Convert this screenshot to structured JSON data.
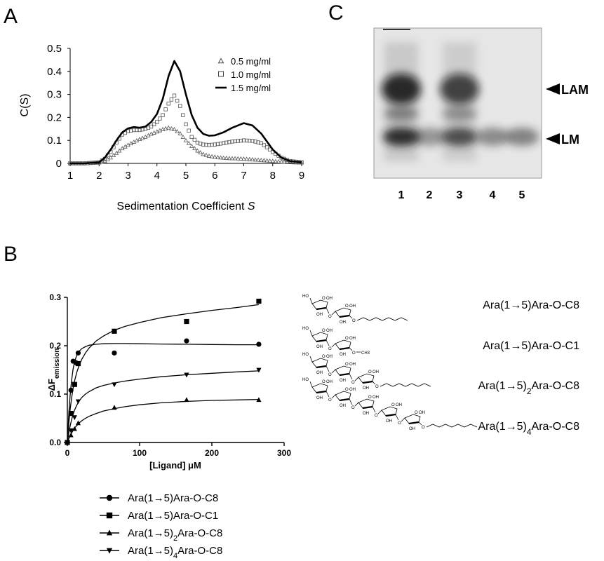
{
  "panels": {
    "a": "A",
    "b": "B",
    "c": "C"
  },
  "chart_data": [
    {
      "type": "line",
      "panel": "A",
      "xlabel": "Sedimentation Coefficient",
      "xlabel_symbol": "S",
      "ylabel": "C(S)",
      "xlim": [
        1,
        9
      ],
      "ylim": [
        0,
        0.5
      ],
      "xticks": [
        1,
        2,
        3,
        4,
        5,
        6,
        7,
        8,
        9
      ],
      "yticks": [
        0,
        0.1,
        0.2,
        0.3,
        0.4,
        0.5
      ],
      "yticklabels": [
        "0",
        "0.1",
        "0.2",
        "0.3",
        "0.4",
        "0.5"
      ],
      "grid": false,
      "legend_position": "top-right",
      "series": [
        {
          "name": "0.5 mg/ml",
          "marker": "triangle-open",
          "x": [
            1.0,
            1.5,
            2.0,
            2.2,
            2.4,
            2.6,
            2.8,
            3.0,
            3.2,
            3.4,
            3.6,
            3.8,
            4.0,
            4.2,
            4.4,
            4.6,
            4.8,
            5.0,
            5.2,
            5.4,
            5.6,
            5.8,
            6.0,
            6.2,
            6.5,
            7.0,
            7.5,
            8.0,
            8.5,
            9.0
          ],
          "y": [
            0.0,
            0.0,
            0.003,
            0.01,
            0.025,
            0.045,
            0.065,
            0.08,
            0.093,
            0.105,
            0.115,
            0.128,
            0.138,
            0.148,
            0.155,
            0.148,
            0.13,
            0.1,
            0.075,
            0.055,
            0.04,
            0.032,
            0.028,
            0.025,
            0.022,
            0.02,
            0.015,
            0.01,
            0.005,
            0.003
          ]
        },
        {
          "name": "1.0 mg/ml",
          "marker": "square-open",
          "x": [
            1.0,
            1.5,
            2.0,
            2.2,
            2.4,
            2.6,
            2.8,
            3.0,
            3.2,
            3.4,
            3.6,
            3.8,
            4.0,
            4.2,
            4.4,
            4.6,
            4.8,
            5.0,
            5.2,
            5.4,
            5.6,
            5.8,
            6.0,
            6.3,
            6.6,
            7.0,
            7.3,
            7.6,
            7.8,
            8.0,
            8.3,
            8.6,
            9.0
          ],
          "y": [
            0.0,
            0.0,
            0.005,
            0.02,
            0.05,
            0.09,
            0.125,
            0.14,
            0.145,
            0.145,
            0.15,
            0.16,
            0.18,
            0.21,
            0.26,
            0.295,
            0.25,
            0.17,
            0.115,
            0.09,
            0.082,
            0.08,
            0.082,
            0.088,
            0.095,
            0.1,
            0.098,
            0.088,
            0.07,
            0.05,
            0.025,
            0.01,
            0.005
          ]
        },
        {
          "name": "1.5 mg/ml",
          "marker": "line",
          "x": [
            1.0,
            1.5,
            2.0,
            2.2,
            2.4,
            2.6,
            2.8,
            3.0,
            3.2,
            3.4,
            3.6,
            3.8,
            4.0,
            4.2,
            4.4,
            4.6,
            4.8,
            5.0,
            5.2,
            5.4,
            5.6,
            5.8,
            6.0,
            6.3,
            6.6,
            7.0,
            7.3,
            7.6,
            7.8,
            8.0,
            8.3,
            8.6,
            9.0
          ],
          "y": [
            0.0,
            0.0,
            0.005,
            0.025,
            0.06,
            0.1,
            0.135,
            0.152,
            0.158,
            0.155,
            0.16,
            0.18,
            0.215,
            0.28,
            0.38,
            0.445,
            0.4,
            0.3,
            0.21,
            0.155,
            0.128,
            0.12,
            0.122,
            0.135,
            0.155,
            0.175,
            0.165,
            0.13,
            0.095,
            0.06,
            0.025,
            0.01,
            0.005
          ]
        }
      ]
    },
    {
      "type": "scatter",
      "panel": "B",
      "xlabel": "[Ligand]",
      "xlabel_unit": "μM",
      "ylabel": "ΔF",
      "ylabel_sub": "emission",
      "xlim": [
        0,
        300
      ],
      "ylim": [
        0,
        0.3
      ],
      "xticks": [
        0,
        100,
        200,
        300
      ],
      "yticks": [
        0,
        0.1,
        0.2,
        0.3
      ],
      "yticklabels": [
        "0.0",
        "0.1",
        "0.2",
        "0.3"
      ],
      "grid": false,
      "legend_position": "bottom",
      "fit": "hyperbolic binding curves",
      "series": [
        {
          "name": "Ara(1→5)Ara-O-C8",
          "name_html": "Ara(1&rarr;5)Ara-O-C8",
          "marker": "circle",
          "x": [
            0,
            5,
            8,
            12,
            15,
            65,
            165,
            265
          ],
          "y": [
            0.0,
            0.108,
            0.168,
            0.165,
            0.185,
            0.185,
            0.21,
            0.203
          ],
          "fit_x": [
            0,
            2,
            4,
            6,
            8,
            10,
            13,
            16,
            20,
            25,
            30,
            40,
            50,
            65,
            80,
            100,
            130,
            165,
            200,
            235,
            265
          ],
          "fit_y": [
            0.0,
            0.06,
            0.1,
            0.13,
            0.152,
            0.167,
            0.18,
            0.188,
            0.194,
            0.198,
            0.201,
            0.203,
            0.204,
            0.2045,
            0.2045,
            0.204,
            0.2035,
            0.203,
            0.2025,
            0.202,
            0.202
          ]
        },
        {
          "name": "Ara(1→5)Ara-O-C1",
          "name_html": "Ara(1&rarr;5)Ara-O-C1",
          "marker": "square",
          "x": [
            0,
            5,
            10,
            15,
            65,
            165,
            265
          ],
          "y": [
            0.0,
            0.06,
            0.12,
            0.163,
            0.23,
            0.25,
            0.292
          ],
          "fit_x": [
            0,
            2,
            4,
            6,
            8,
            10,
            13,
            16,
            20,
            25,
            30,
            40,
            50,
            65,
            80,
            100,
            130,
            165,
            200,
            235,
            265
          ],
          "fit_y": [
            0.0,
            0.04,
            0.07,
            0.093,
            0.112,
            0.127,
            0.145,
            0.158,
            0.172,
            0.185,
            0.195,
            0.21,
            0.22,
            0.232,
            0.24,
            0.248,
            0.258,
            0.266,
            0.273,
            0.279,
            0.285
          ]
        },
        {
          "name": "Ara(1→5)2Ara-O-C8",
          "name_html": "Ara(1&rarr;5)<tspan baseline-shift=\"sub\" font-size=\"11\">2</tspan>Ara-O-C8",
          "marker": "triangle-up",
          "x": [
            0,
            5,
            10,
            15,
            65,
            165,
            265
          ],
          "y": [
            0.0,
            0.015,
            0.028,
            0.04,
            0.072,
            0.088,
            0.088
          ],
          "fit_x": [
            0,
            2,
            4,
            6,
            8,
            10,
            13,
            16,
            20,
            25,
            30,
            40,
            50,
            65,
            80,
            100,
            130,
            165,
            200,
            235,
            265
          ],
          "fit_y": [
            0.0,
            0.008,
            0.014,
            0.02,
            0.025,
            0.03,
            0.035,
            0.04,
            0.045,
            0.05,
            0.054,
            0.06,
            0.065,
            0.07,
            0.074,
            0.078,
            0.082,
            0.085,
            0.087,
            0.088,
            0.089
          ]
        },
        {
          "name": "Ara(1→5)4Ara-O-C8",
          "name_html": "Ara(1&rarr;5)<tspan baseline-shift=\"sub\" font-size=\"11\">4</tspan>Ara-O-C8",
          "marker": "triangle-down",
          "x": [
            0,
            5,
            10,
            15,
            65,
            165,
            265
          ],
          "y": [
            0.0,
            0.025,
            0.052,
            0.085,
            0.12,
            0.14,
            0.15
          ],
          "fit_x": [
            0,
            2,
            4,
            6,
            8,
            10,
            13,
            16,
            20,
            25,
            30,
            40,
            50,
            65,
            80,
            100,
            130,
            165,
            200,
            235,
            265
          ],
          "fit_y": [
            0.0,
            0.02,
            0.035,
            0.048,
            0.058,
            0.067,
            0.077,
            0.085,
            0.093,
            0.1,
            0.105,
            0.113,
            0.118,
            0.123,
            0.127,
            0.131,
            0.136,
            0.14,
            0.143,
            0.146,
            0.148
          ]
        }
      ]
    }
  ],
  "structures": [
    {
      "label_html": "Ara(1&rarr;5)Ara-O-C8",
      "units": 2,
      "tail": "C8"
    },
    {
      "label_html": "Ara(1&rarr;5)Ara-O-C1",
      "units": 2,
      "tail": "CH3"
    },
    {
      "label_html": "Ara(1&rarr;5)<tspan baseline-shift=\"sub\" font-size=\"12\">2</tspan>Ara-O-C8",
      "units": 3,
      "tail": "C8"
    },
    {
      "label_html": "Ara(1&rarr;5)<tspan baseline-shift=\"sub\" font-size=\"12\">4</tspan>Ara-O-C8",
      "units": 5,
      "tail": "C8"
    }
  ],
  "chem": {
    "ho": "HO",
    "oh": "OH",
    "o": "O",
    "ch3": "CH3"
  },
  "gel": {
    "lanes": [
      "1",
      "2",
      "3",
      "4",
      "5"
    ],
    "bands": {
      "lam": "LAM",
      "lm": "LM"
    },
    "intensity": {
      "lam": [
        1.0,
        0.0,
        0.85,
        0.0,
        0.0
      ],
      "lm": [
        1.0,
        0.45,
        0.8,
        0.5,
        0.55
      ]
    }
  }
}
